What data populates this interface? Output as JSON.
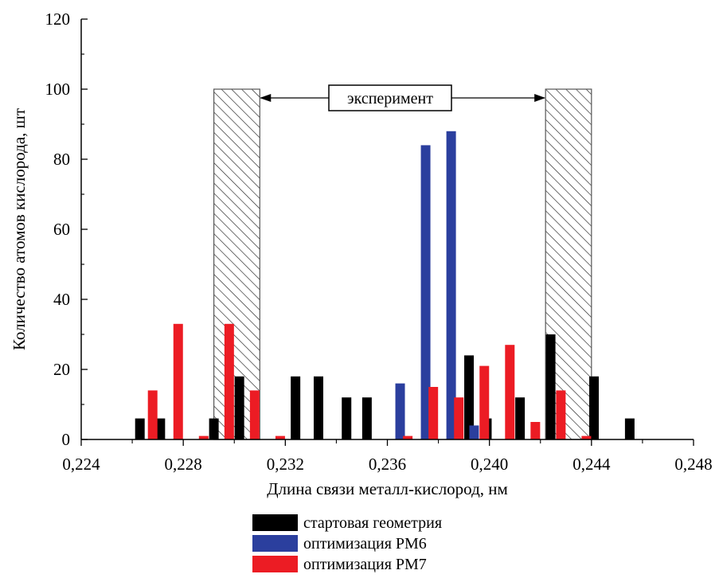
{
  "chart_data": {
    "type": "bar",
    "xlabel": "Длина связи металл-кислород, нм",
    "ylabel": "Количество атомов кислорода, шт",
    "xlim": [
      0.224,
      0.248
    ],
    "ylim": [
      0,
      120
    ],
    "x_ticks": [
      0.224,
      0.228,
      0.232,
      0.236,
      0.24,
      0.244,
      0.248
    ],
    "x_tick_labels": [
      "0,224",
      "0,228",
      "0,232",
      "0,236",
      "0,240",
      "0,244",
      "0,248"
    ],
    "y_ticks": [
      0,
      20,
      40,
      60,
      80,
      100,
      120
    ],
    "y_tick_labels": [
      "0",
      "20",
      "40",
      "60",
      "80",
      "100",
      "120"
    ],
    "grid": false,
    "legend_position": "bottom",
    "series": [
      {
        "name": "стартовая геометрия",
        "color": "#000000",
        "points": [
          {
            "x": 0.2263,
            "y": 6
          },
          {
            "x": 0.2271,
            "y": 6
          },
          {
            "x": 0.2292,
            "y": 6
          },
          {
            "x": 0.2302,
            "y": 18
          },
          {
            "x": 0.2324,
            "y": 18
          },
          {
            "x": 0.2333,
            "y": 18
          },
          {
            "x": 0.2344,
            "y": 12
          },
          {
            "x": 0.2352,
            "y": 12
          },
          {
            "x": 0.2392,
            "y": 24
          },
          {
            "x": 0.2399,
            "y": 6
          },
          {
            "x": 0.2412,
            "y": 12
          },
          {
            "x": 0.2424,
            "y": 30
          },
          {
            "x": 0.2441,
            "y": 18
          },
          {
            "x": 0.2455,
            "y": 6
          }
        ]
      },
      {
        "name": "оптимизация PM6",
        "color": "#2b3f9e",
        "points": [
          {
            "x": 0.2365,
            "y": 16
          },
          {
            "x": 0.2375,
            "y": 84
          },
          {
            "x": 0.2385,
            "y": 88
          },
          {
            "x": 0.2394,
            "y": 4
          }
        ]
      },
      {
        "name": "оптимизация PM7",
        "color": "#ec1c24",
        "points": [
          {
            "x": 0.2268,
            "y": 14
          },
          {
            "x": 0.2278,
            "y": 33
          },
          {
            "x": 0.2288,
            "y": 1
          },
          {
            "x": 0.2298,
            "y": 33
          },
          {
            "x": 0.2308,
            "y": 14
          },
          {
            "x": 0.2318,
            "y": 1
          },
          {
            "x": 0.2368,
            "y": 1
          },
          {
            "x": 0.2378,
            "y": 15
          },
          {
            "x": 0.2388,
            "y": 12
          },
          {
            "x": 0.2398,
            "y": 21
          },
          {
            "x": 0.2408,
            "y": 27
          },
          {
            "x": 0.2418,
            "y": 5
          },
          {
            "x": 0.2428,
            "y": 14
          },
          {
            "x": 0.2438,
            "y": 1
          }
        ]
      }
    ],
    "annotation": {
      "label": "эксперимент",
      "regions": [
        [
          0.2292,
          0.231
        ],
        [
          0.2422,
          0.244
        ]
      ],
      "region_height": 100
    }
  }
}
